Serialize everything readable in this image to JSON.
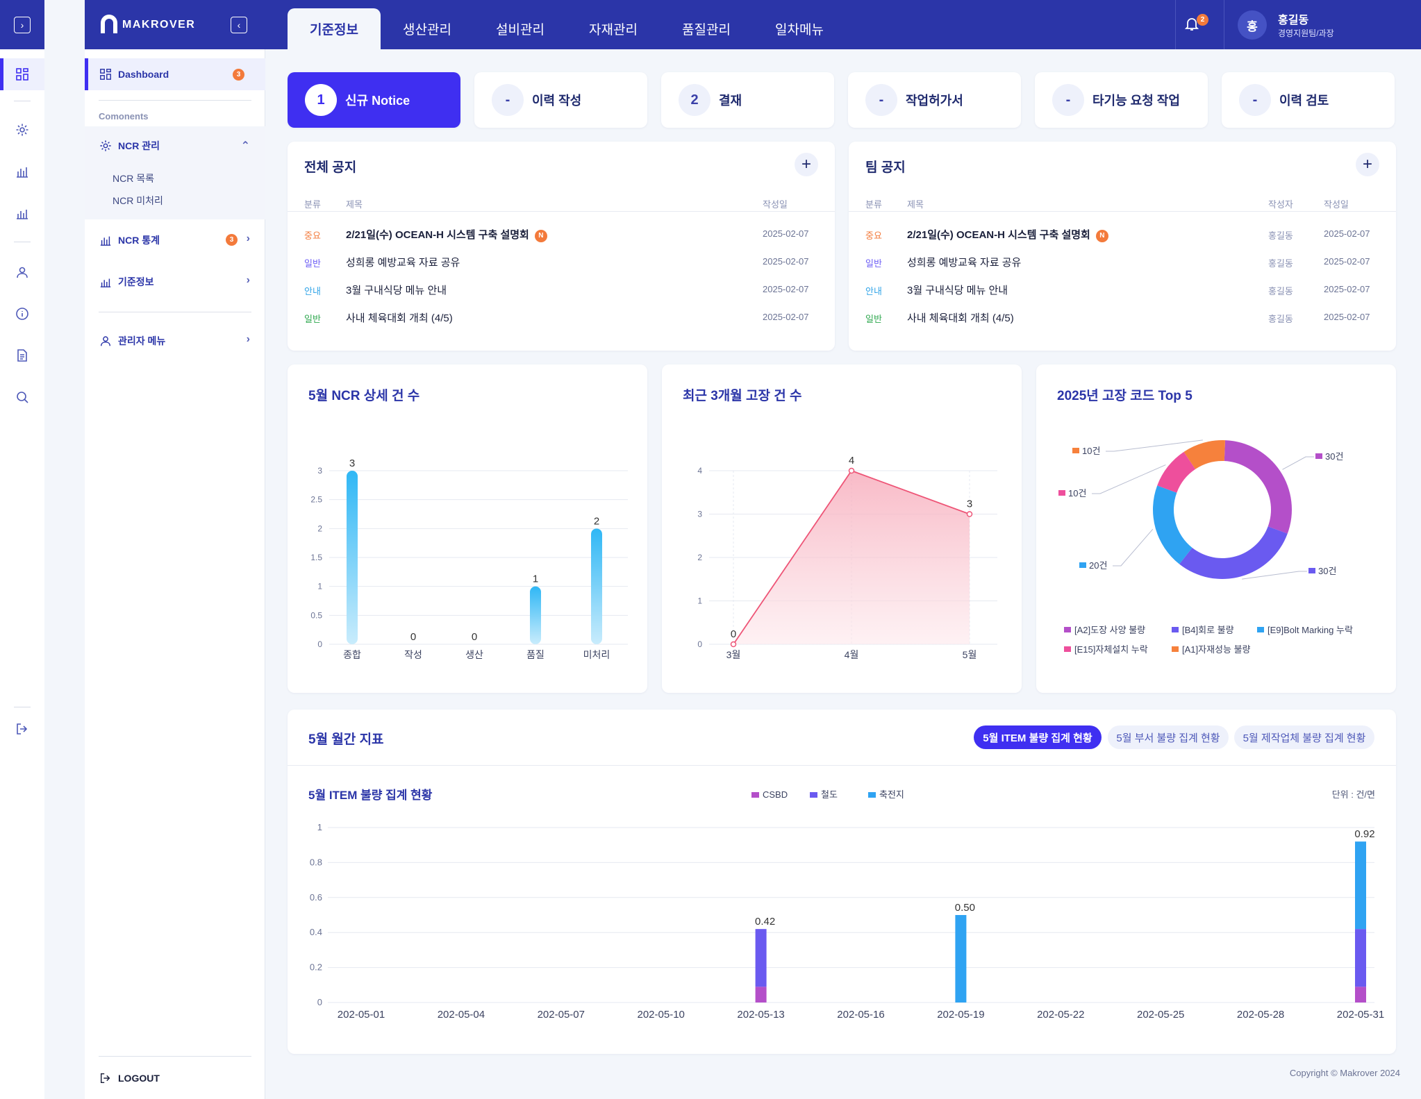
{
  "nav": {
    "tabs": [
      {
        "label": "기준정보",
        "active": true
      },
      {
        "label": "생산관리"
      },
      {
        "label": "설비관리"
      },
      {
        "label": "자재관리"
      },
      {
        "label": "품질관리"
      },
      {
        "label": "일차메뉴"
      }
    ],
    "notification_count": "2",
    "user": {
      "initial": "홍",
      "name": "홍길동",
      "role": "경영지원팀/과장"
    }
  },
  "brand": {
    "name": "MAKROVER"
  },
  "sidebar": {
    "dashboard": {
      "label": "Dashboard",
      "badge": "3"
    },
    "section_label": "Comonents",
    "ncr_manage": {
      "label": "NCR 관리",
      "children": [
        "NCR 목록",
        "NCR 미처리"
      ]
    },
    "ncr_stats": {
      "label": "NCR 통계",
      "badge": "3"
    },
    "base_info": {
      "label": "기준정보"
    },
    "admin": {
      "label": "관리자 메뉴"
    },
    "logout": "LOGOUT"
  },
  "tiles": [
    {
      "num": "1",
      "label": "신규 Notice",
      "active": true
    },
    {
      "num": "-",
      "label": "이력 작성"
    },
    {
      "num": "2",
      "label": "결재"
    },
    {
      "num": "-",
      "label": "작업허가서"
    },
    {
      "num": "-",
      "label": "타기능 요청 작업"
    },
    {
      "num": "-",
      "label": "이력 검토"
    }
  ],
  "notice_all": {
    "title": "전체 공지",
    "headers": {
      "category": "분류",
      "title": "제목",
      "date": "작성일"
    },
    "rows": [
      {
        "category": "중요",
        "title": "2/21일(수) OCEAN-H 시스템 구축 설명회",
        "new": "N",
        "date": "2025-02-07"
      },
      {
        "category": "일반",
        "title": "성희롱 예방교육 자료 공유",
        "date": "2025-02-07"
      },
      {
        "category": "안내",
        "title": "3월 구내식당 메뉴 안내",
        "date": "2025-02-07"
      },
      {
        "category": "일반",
        "title": "사내 체육대회 개최 (4/5)",
        "date": "2025-02-07"
      }
    ]
  },
  "notice_team": {
    "title": "팀 공지",
    "headers": {
      "category": "분류",
      "title": "제목",
      "author": "작성자",
      "date": "작성일"
    },
    "rows": [
      {
        "category": "중요",
        "title": "2/21일(수) OCEAN-H 시스템 구축 설명회",
        "new": "N",
        "author": "홍길동",
        "date": "2025-02-07"
      },
      {
        "category": "일반",
        "title": "성희롱 예방교육 자료 공유",
        "author": "홍길동",
        "date": "2025-02-07"
      },
      {
        "category": "안내",
        "title": "3월 구내식당 메뉴 안내",
        "author": "홍길동",
        "date": "2025-02-07"
      },
      {
        "category": "일반",
        "title": "사내 체육대회 개최 (4/5)",
        "author": "홍길동",
        "date": "2025-02-07"
      }
    ]
  },
  "colors": {
    "accent": "#3f2ff1",
    "navy": "#2b35a8",
    "orange": "#f37a3b"
  },
  "chart_data": [
    {
      "type": "bar",
      "title": "5월 NCR 상세 건 수",
      "categories": [
        "종합",
        "작성",
        "생산",
        "품질",
        "미처리"
      ],
      "values": [
        3,
        0,
        0,
        1,
        2
      ],
      "ylim": [
        0,
        3
      ],
      "yticks": [
        "0",
        "0.5",
        "1",
        "1.5",
        "2",
        "2.5",
        "3"
      ],
      "grid": true
    },
    {
      "type": "area",
      "title": "최근 3개월 고장 건 수",
      "categories": [
        "3월",
        "4월",
        "5월"
      ],
      "values": [
        0,
        4,
        3
      ],
      "ylim": [
        0,
        4
      ],
      "yticks": [
        "0",
        "1",
        "2",
        "3",
        "4"
      ],
      "grid": true
    },
    {
      "type": "pie",
      "title": "2025년 고장 코드 Top 5",
      "slices": [
        {
          "label": "[A2]도장 사양 불량",
          "value": 30,
          "data_label": "30건",
          "color": "#b44fc9"
        },
        {
          "label": "[B4]회로 불량",
          "value": 30,
          "data_label": "30건",
          "color": "#6a5af0"
        },
        {
          "label": "[E9]Bolt Marking 누락",
          "value": 20,
          "data_label": "20건",
          "color": "#2fa3f2"
        },
        {
          "label": "[E15]자체설치 누락",
          "value": 10,
          "data_label": "10건",
          "color": "#ee4f9c"
        },
        {
          "label": "[A1]자재성능 불량",
          "value": 10,
          "data_label": "10건",
          "color": "#f6813c"
        }
      ],
      "legend_position": "bottom"
    },
    {
      "type": "bar",
      "stacked": true,
      "title": "5월 ITEM 불량 집계 현황",
      "unit_label": "단위 : 건/면",
      "x": [
        "202-05-01",
        "202-05-02",
        "202-05-03",
        "202-05-04",
        "202-05-05",
        "202-05-06",
        "202-05-07",
        "202-05-08",
        "202-05-09",
        "202-05-10",
        "202-05-11",
        "202-05-12",
        "202-05-13",
        "202-05-14",
        "202-05-15",
        "202-05-16",
        "202-05-17",
        "202-05-18",
        "202-05-19",
        "202-05-20",
        "202-05-21",
        "202-05-22",
        "202-05-23",
        "202-05-24",
        "202-05-25",
        "202-05-26",
        "202-05-27",
        "202-05-28",
        "202-05-29",
        "202-05-30",
        "202-05-31"
      ],
      "xticks": [
        "202-05-01",
        "202-05-04",
        "202-05-07",
        "202-05-10",
        "202-05-13",
        "202-05-16",
        "202-05-19",
        "202-05-22",
        "202-05-25",
        "202-05-28",
        "202-05-31"
      ],
      "series": [
        {
          "name": "CSBD",
          "color": "#b44fc9",
          "values": {
            "202-05-13": 0.09,
            "202-05-31": 0.09
          }
        },
        {
          "name": "철도",
          "color": "#6a5af0",
          "values": {
            "202-05-13": 0.33,
            "202-05-31": 0.33
          }
        },
        {
          "name": "축전지",
          "color": "#2fa3f2",
          "values": {
            "202-05-19": 0.5,
            "202-05-31": 0.5
          }
        }
      ],
      "totals": [
        {
          "x": "202-05-13",
          "label": "0.42"
        },
        {
          "x": "202-05-19",
          "label": "0.50"
        },
        {
          "x": "202-05-31",
          "label": "0.92"
        }
      ],
      "ylim": [
        0,
        1
      ],
      "yticks": [
        "0",
        "0.2",
        "0.4",
        "0.6",
        "0.8",
        "1"
      ],
      "legend_position": "top"
    }
  ],
  "monthly": {
    "title": "5월 월간 지표",
    "pills": [
      "5월 ITEM 불량 집계 현황",
      "5월 부서 불량 집계 현황",
      "5월 제작업체 불량 집계 현황"
    ]
  },
  "footer": "Copyright © Makrover 2024"
}
